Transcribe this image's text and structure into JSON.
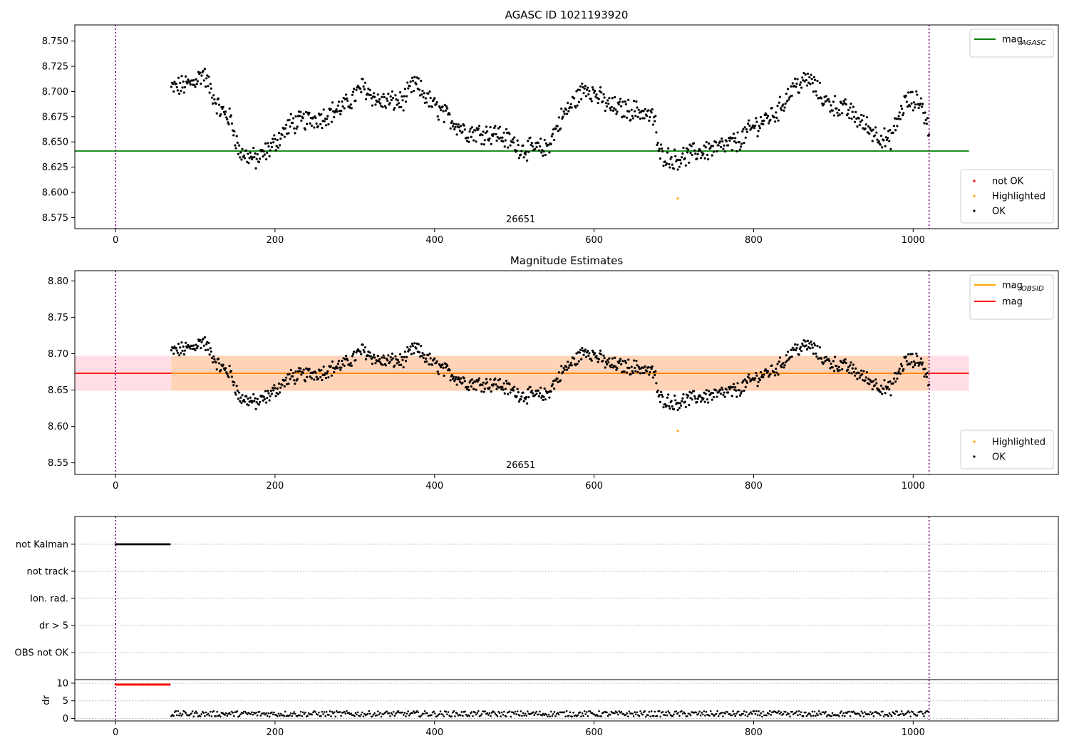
{
  "chart_data": [
    {
      "id": "p1",
      "type": "scatter",
      "title": "AGASC ID 1021193920",
      "annotation": "26651",
      "xlim": [
        -51,
        1182
      ],
      "ylim": [
        8.564,
        8.766
      ],
      "xticks": [
        0,
        200,
        400,
        600,
        800,
        1000
      ],
      "yticks": [
        8.575,
        8.6,
        8.625,
        8.65,
        8.675,
        8.7,
        8.725,
        8.75
      ],
      "ytick_labels": [
        "8.575",
        "8.600",
        "8.625",
        "8.650",
        "8.675",
        "8.700",
        "8.725",
        "8.750"
      ],
      "vlines": [
        0,
        1020
      ],
      "vline_color": "#800080",
      "hlines": [
        {
          "name": "mag_AGASC",
          "y": 8.641,
          "x": [
            -51,
            1070
          ],
          "color": "#008000"
        }
      ],
      "series": [
        {
          "name": "not OK",
          "color": "#ff0000",
          "x": [],
          "y": []
        },
        {
          "name": "Highlighted",
          "color": "#ffa500",
          "x": [
            705
          ],
          "y": [
            8.594
          ]
        },
        {
          "name": "OK",
          "color": "#000000",
          "generated": true
        }
      ],
      "legend_top": [
        {
          "label": "mag",
          "sub": "AGASC",
          "color": "#008000"
        }
      ],
      "legend_bottom": [
        {
          "label": "not OK",
          "color": "#ff0000"
        },
        {
          "label": "Highlighted",
          "color": "#ffa500"
        },
        {
          "label": "OK",
          "color": "#000000"
        }
      ]
    },
    {
      "id": "p2",
      "type": "scatter",
      "title": "Magnitude Estimates",
      "annotation": "26651",
      "xlim": [
        -51,
        1182
      ],
      "ylim": [
        8.534,
        8.814
      ],
      "xticks": [
        0,
        200,
        400,
        600,
        800,
        1000
      ],
      "yticks": [
        8.55,
        8.6,
        8.65,
        8.7,
        8.75,
        8.8
      ],
      "ytick_labels": [
        "8.55",
        "8.60",
        "8.65",
        "8.70",
        "8.75",
        "8.80"
      ],
      "vlines": [
        0,
        1020
      ],
      "vline_color": "#800080",
      "bands": [
        {
          "y": [
            8.649,
            8.697
          ],
          "x": [
            -51,
            1070
          ],
          "color": "#ffc0cb",
          "opacity": 0.5
        }
      ],
      "hlines": [
        {
          "name": "mag",
          "y": 8.673,
          "x": [
            -51,
            1070
          ],
          "color": "#ff0000"
        }
      ],
      "series": [
        {
          "name": "Highlighted",
          "color": "#ffa500",
          "x": [
            705
          ],
          "y": [
            8.594
          ]
        },
        {
          "name": "OK",
          "color": "#000000",
          "generated": true
        }
      ],
      "legend_top": [
        {
          "label": "mag",
          "sub": "OBSID",
          "color": "#ffa500"
        },
        {
          "label": "mag",
          "sub": "",
          "color": "#ff0000"
        }
      ],
      "legend_bottom": [
        {
          "label": "Highlighted",
          "color": "#ffa500"
        },
        {
          "label": "OK",
          "color": "#000000"
        }
      ]
    },
    {
      "id": "p3",
      "type": "scatter",
      "xlim": [
        -51,
        1182
      ],
      "categories": [
        "not Kalman",
        "not track",
        "Ion. rad.",
        "dr > 5",
        "OBS not OK"
      ],
      "flags": [
        {
          "category": "not Kalman",
          "x": [
            0,
            68
          ]
        }
      ],
      "vlines": [
        0,
        1020
      ],
      "vline_color": "#800080"
    },
    {
      "id": "p4",
      "type": "scatter",
      "ylabel": "dr",
      "xlim": [
        -51,
        1182
      ],
      "ylim": [
        -0.7,
        11.0
      ],
      "xticks": [
        0,
        200,
        400,
        600,
        800,
        1000
      ],
      "yticks": [
        0,
        5,
        10
      ],
      "ytick_labels": [
        "0",
        "5",
        "10"
      ],
      "vlines": [
        0,
        1020
      ],
      "vline_color": "#800080",
      "series": [
        {
          "name": "not OK",
          "color": "#ff0000",
          "x": [
            0,
            68
          ],
          "y": [
            9.6,
            9.6
          ]
        },
        {
          "name": "OK",
          "color": "#000000",
          "generated": true
        }
      ]
    }
  ]
}
